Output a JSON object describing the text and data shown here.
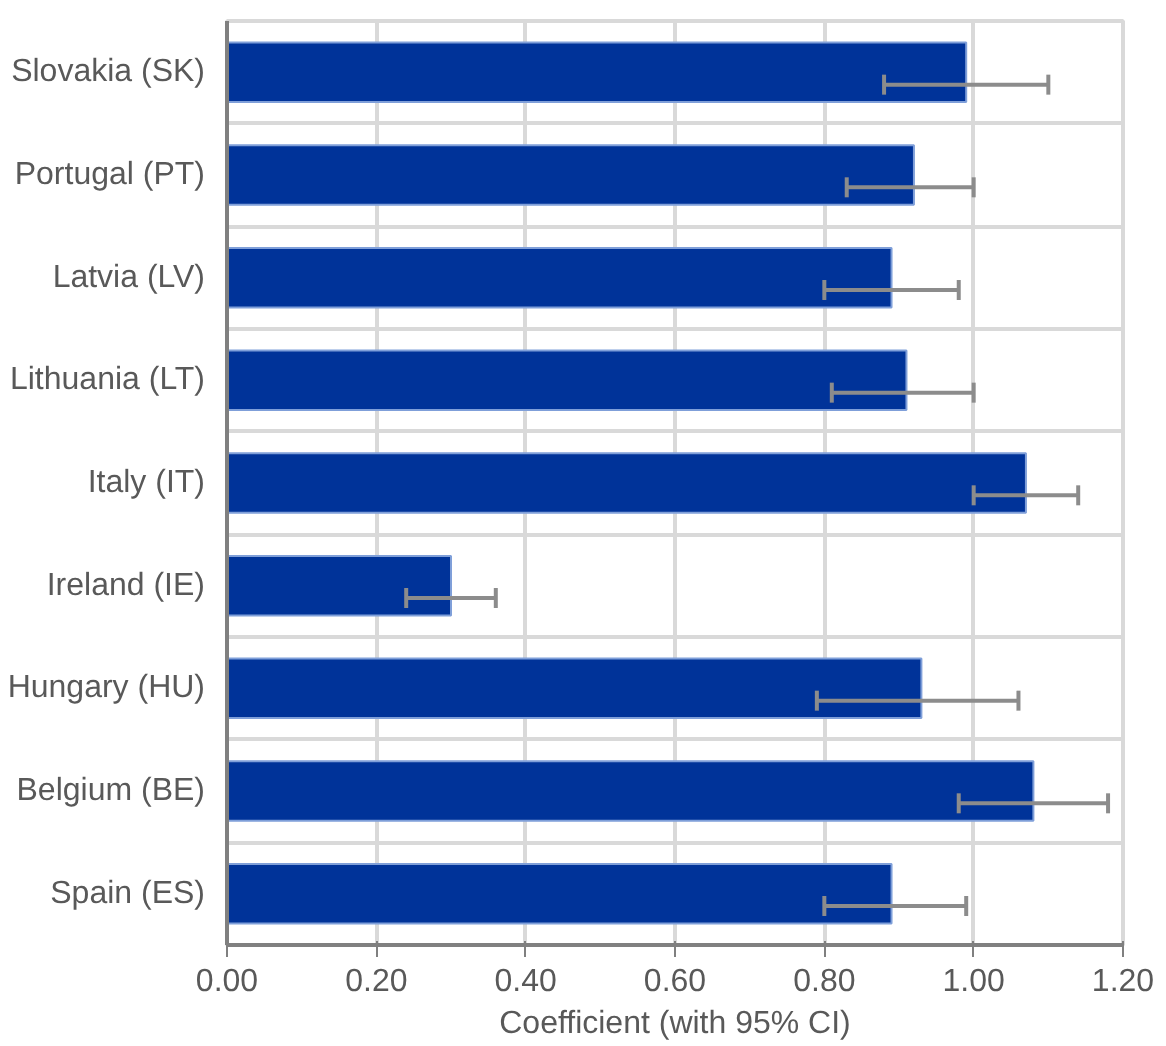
{
  "chart_data": {
    "type": "bar",
    "orientation": "horizontal",
    "xlabel": "Coefficient (with 95% CI)",
    "categories": [
      "Slovakia (SK)",
      "Portugal (PT)",
      "Latvia (LV)",
      "Lithuania (LT)",
      "Italy (IT)",
      "Ireland (IE)",
      "Hungary (HU)",
      "Belgium (BE)",
      "Spain (ES)"
    ],
    "values": [
      0.99,
      0.92,
      0.89,
      0.91,
      1.07,
      0.3,
      0.93,
      1.08,
      0.89
    ],
    "errors": [
      [
        0.88,
        1.1
      ],
      [
        0.83,
        1.0
      ],
      [
        0.8,
        0.98
      ],
      [
        0.81,
        1.0
      ],
      [
        1.0,
        1.14
      ],
      [
        0.24,
        0.36
      ],
      [
        0.79,
        1.06
      ],
      [
        0.98,
        1.18
      ],
      [
        0.8,
        0.99
      ]
    ],
    "color": "#003399",
    "xlim": [
      0,
      1.2
    ],
    "xticks": [
      {
        "value": 0,
        "label": "0.00"
      },
      {
        "value": 0.2,
        "label": "0.20"
      },
      {
        "value": 0.4,
        "label": "0.40"
      },
      {
        "value": 0.6,
        "label": "0.60"
      },
      {
        "value": 0.8,
        "label": "0.80"
      },
      {
        "value": 1.0,
        "label": "1.00"
      },
      {
        "value": 1.2,
        "label": "1.20"
      }
    ],
    "grid": true
  }
}
